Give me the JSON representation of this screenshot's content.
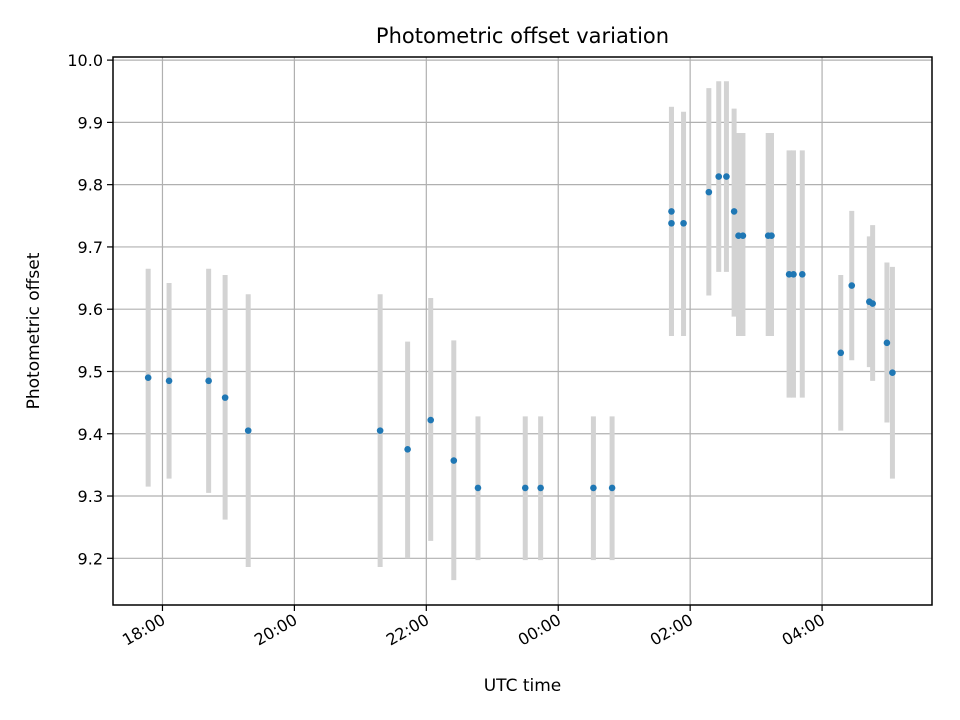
{
  "chart_data": {
    "type": "scatter",
    "title": "Photometric offset variation",
    "xlabel": "UTC time",
    "ylabel": "Photometric offset",
    "grid": true,
    "legend": "none",
    "ylim": [
      9.125,
      10.005
    ],
    "xlim": [
      "17:15",
      "05:40"
    ],
    "x_ticks": [
      {
        "t": "18:00",
        "label": "18:00"
      },
      {
        "t": "20:00",
        "label": "20:00"
      },
      {
        "t": "22:00",
        "label": "22:00"
      },
      {
        "t": "00:00",
        "label": "00:00"
      },
      {
        "t": "02:00",
        "label": "02:00"
      },
      {
        "t": "04:00",
        "label": "04:00"
      }
    ],
    "y_ticks": [
      {
        "v": 9.2,
        "label": "9.2"
      },
      {
        "v": 9.3,
        "label": "9.3"
      },
      {
        "v": 9.4,
        "label": "9.4"
      },
      {
        "v": 9.5,
        "label": "9.5"
      },
      {
        "v": 9.6,
        "label": "9.6"
      },
      {
        "v": 9.7,
        "label": "9.7"
      },
      {
        "v": 9.8,
        "label": "9.8"
      },
      {
        "v": 9.9,
        "label": "9.9"
      },
      {
        "v": 10.0,
        "label": "10.0"
      }
    ],
    "colors": {
      "point": "#1f77b4",
      "errorbar": "#d3d3d3",
      "grid": "#b0b0b0"
    },
    "series": [
      {
        "points": [
          {
            "x": "17:47",
            "y": 9.49,
            "ylow": 9.315,
            "yhigh": 9.665
          },
          {
            "x": "18:06",
            "y": 9.485,
            "ylow": 9.328,
            "yhigh": 9.642
          },
          {
            "x": "18:42",
            "y": 9.485,
            "ylow": 9.305,
            "yhigh": 9.665
          },
          {
            "x": "18:57",
            "y": 9.458,
            "ylow": 9.262,
            "yhigh": 9.655
          },
          {
            "x": "19:18",
            "y": 9.405,
            "ylow": 9.186,
            "yhigh": 9.624
          },
          {
            "x": "21:18",
            "y": 9.405,
            "ylow": 9.186,
            "yhigh": 9.624
          },
          {
            "x": "21:43",
            "y": 9.375,
            "ylow": 9.2,
            "yhigh": 9.548
          },
          {
            "x": "22:04",
            "y": 9.422,
            "ylow": 9.228,
            "yhigh": 9.618
          },
          {
            "x": "22:25",
            "y": 9.357,
            "ylow": 9.165,
            "yhigh": 9.55
          },
          {
            "x": "22:47",
            "y": 9.313,
            "ylow": 9.197,
            "yhigh": 9.428
          },
          {
            "x": "23:30",
            "y": 9.313,
            "ylow": 9.197,
            "yhigh": 9.428
          },
          {
            "x": "23:44",
            "y": 9.313,
            "ylow": 9.197,
            "yhigh": 9.428
          },
          {
            "x": "00:32",
            "y": 9.313,
            "ylow": 9.197,
            "yhigh": 9.428
          },
          {
            "x": "00:49",
            "y": 9.313,
            "ylow": 9.197,
            "yhigh": 9.428
          },
          {
            "x": "01:43",
            "y": 9.757,
            "ylow": 9.557,
            "yhigh": 9.925
          },
          {
            "x": "01:43",
            "y": 9.738,
            "ylow": 9.557,
            "yhigh": 9.925
          },
          {
            "x": "01:54",
            "y": 9.738,
            "ylow": 9.557,
            "yhigh": 9.917
          },
          {
            "x": "02:17",
            "y": 9.788,
            "ylow": 9.622,
            "yhigh": 9.955
          },
          {
            "x": "02:26",
            "y": 9.813,
            "ylow": 9.66,
            "yhigh": 9.966
          },
          {
            "x": "02:33",
            "y": 9.813,
            "ylow": 9.66,
            "yhigh": 9.966
          },
          {
            "x": "02:40",
            "y": 9.757,
            "ylow": 9.588,
            "yhigh": 9.922
          },
          {
            "x": "02:44",
            "y": 9.718,
            "ylow": 9.557,
            "yhigh": 9.883
          },
          {
            "x": "02:48",
            "y": 9.718,
            "ylow": 9.557,
            "yhigh": 9.883
          },
          {
            "x": "03:11",
            "y": 9.718,
            "ylow": 9.557,
            "yhigh": 9.883
          },
          {
            "x": "03:14",
            "y": 9.718,
            "ylow": 9.557,
            "yhigh": 9.883
          },
          {
            "x": "03:30",
            "y": 9.656,
            "ylow": 9.458,
            "yhigh": 9.855
          },
          {
            "x": "03:34",
            "y": 9.656,
            "ylow": 9.458,
            "yhigh": 9.855
          },
          {
            "x": "03:42",
            "y": 9.656,
            "ylow": 9.458,
            "yhigh": 9.855
          },
          {
            "x": "04:17",
            "y": 9.53,
            "ylow": 9.405,
            "yhigh": 9.655
          },
          {
            "x": "04:27",
            "y": 9.638,
            "ylow": 9.518,
            "yhigh": 9.758
          },
          {
            "x": "04:43",
            "y": 9.612,
            "ylow": 9.507,
            "yhigh": 9.717
          },
          {
            "x": "04:46",
            "y": 9.609,
            "ylow": 9.485,
            "yhigh": 9.735
          },
          {
            "x": "04:59",
            "y": 9.546,
            "ylow": 9.418,
            "yhigh": 9.675
          },
          {
            "x": "05:04",
            "y": 9.498,
            "ylow": 9.328,
            "yhigh": 9.668
          }
        ]
      }
    ]
  }
}
